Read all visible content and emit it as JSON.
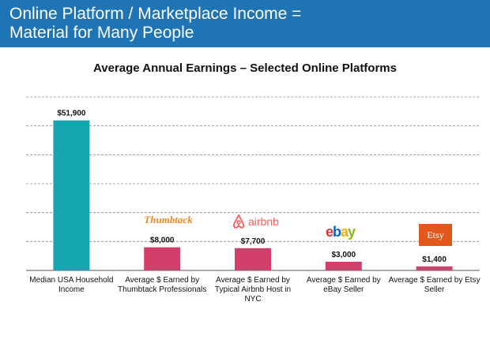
{
  "header": {
    "line1": "Online Platform / Marketplace Income =",
    "line2": "Material for Many People"
  },
  "colors": {
    "header_bg": "#1f74b5",
    "bar_primary": "#16a6b1",
    "bar_secondary": "#d23f6b"
  },
  "logos": {
    "thumbtack": "Thumbtack",
    "airbnb": "airbnb",
    "ebay": [
      "e",
      "b",
      "a",
      "y"
    ],
    "etsy": "Etsy"
  },
  "chart_data": {
    "type": "bar",
    "title": "Average Annual Earnings – Selected Online Platforms",
    "categories": [
      "Median USA Household Income",
      "Average $ Earned by Thumbtack Professionals",
      "Average $ Earned by Typical Airbnb Host in NYC",
      "Average $ Earned by eBay Seller",
      "Average $ Earned by Etsy Seller"
    ],
    "values": [
      51900,
      8000,
      7700,
      3000,
      1400
    ],
    "value_labels": [
      "$51,900",
      "$8,000",
      "$7,700",
      "$3,000",
      "$1,400"
    ],
    "ylim": [
      0,
      60000
    ],
    "grid": true,
    "legend": "none"
  }
}
